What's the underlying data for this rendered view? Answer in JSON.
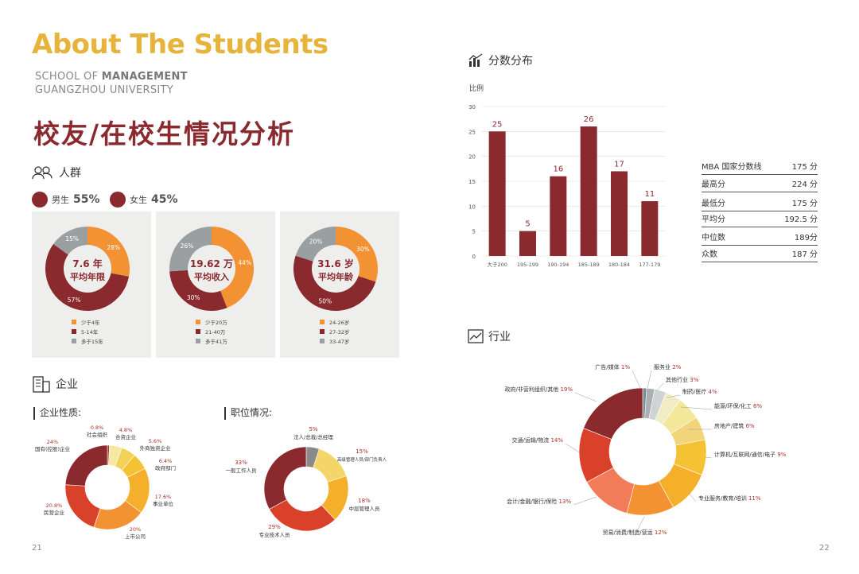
{
  "header": {
    "title": "About The Students",
    "school_line1_a": "SCHOOL OF ",
    "school_line1_b": "MANAGEMENT",
    "school_line2": "GUANGZHOU UNIVERSITY",
    "cn_title": "校友/在校生情况分析"
  },
  "crowd": {
    "title": "人群",
    "male_label": "男生",
    "male_value": "55%",
    "female_label": "女生",
    "female_value": "45%"
  },
  "colors": {
    "orange": "#f39233",
    "red": "#8b2a2e",
    "gray": "#9aa0a2",
    "accent": "#e6b43a"
  },
  "donuts": [
    {
      "center_value": "7.6 年",
      "center_label": "平均年限",
      "values": [
        28,
        57,
        15
      ],
      "labels": [
        "28%",
        "57%",
        "15%"
      ],
      "legend": [
        "少于4年",
        "5-14年",
        "多于15年"
      ]
    },
    {
      "center_value": "19.62 万",
      "center_label": "平均收入",
      "values": [
        44,
        30,
        26
      ],
      "labels": [
        "44%",
        "30%",
        "26%"
      ],
      "legend": [
        "少于20万",
        "21-40万",
        "多于41万"
      ]
    },
    {
      "center_value": "31.6 岁",
      "center_label": "平均年龄",
      "values": [
        30,
        50,
        20
      ],
      "labels": [
        "30%",
        "50%",
        "20%"
      ],
      "legend": [
        "24-26岁",
        "27-32岁",
        "33-47岁"
      ]
    }
  ],
  "enterprise": {
    "title": "企业",
    "nature_title": "企业性质:",
    "position_title": "职位情况:"
  },
  "chart_data": [
    {
      "type": "bar",
      "title": "分数分布",
      "ylabel": "比例",
      "categories": [
        "大于200",
        "195-199",
        "190-194",
        "185-189",
        "180-184",
        "177-179"
      ],
      "values": [
        25,
        5,
        16,
        26,
        17,
        11
      ],
      "ylim": [
        0,
        30
      ],
      "yticks": [
        0,
        5,
        10,
        15,
        20,
        25,
        30
      ]
    },
    {
      "type": "pie",
      "title": "企业性质:",
      "slices": [
        {
          "name": "社会组织",
          "value": 0.8,
          "pct": "0.8%",
          "color": "#a93226"
        },
        {
          "name": "合资企业",
          "value": 4.8,
          "pct": "4.8%",
          "color": "#f6e7a1"
        },
        {
          "name": "外商独资企业",
          "value": 5.6,
          "pct": "5.6%",
          "color": "#f3d25a"
        },
        {
          "name": "政府部门",
          "value": 6.4,
          "pct": "6.4%",
          "color": "#f5c233"
        },
        {
          "name": "事业单位",
          "value": 17.6,
          "pct": "17.6%",
          "color": "#f5b02b"
        },
        {
          "name": "上市公司",
          "value": 20,
          "pct": "20%",
          "color": "#f39233"
        },
        {
          "name": "民营企业",
          "value": 20.8,
          "pct": "20.8%",
          "color": "#d9412a"
        },
        {
          "name": "国有(控股)企业",
          "value": 24,
          "pct": "24%",
          "color": "#8b2a2e"
        }
      ]
    },
    {
      "type": "pie",
      "title": "职位情况:",
      "slices": [
        {
          "name": "法人/总裁/总经理",
          "value": 5,
          "pct": "5%",
          "color": "#8a8a8a"
        },
        {
          "name": "高级管理人员/部门负责人",
          "value": 15,
          "pct": "15%",
          "color": "#f3d56a"
        },
        {
          "name": "中层管理人员",
          "value": 18,
          "pct": "18%",
          "color": "#f5b02b"
        },
        {
          "name": "专业技术人员",
          "value": 29,
          "pct": "29%",
          "color": "#d9412a"
        },
        {
          "name": "一般工作人员",
          "value": 33,
          "pct": "33%",
          "color": "#8b2a2e"
        }
      ]
    },
    {
      "type": "pie",
      "title": "行业",
      "slices": [
        {
          "name": "广告/媒体",
          "value": 1,
          "pct": "1%",
          "color": "#7f8c8d"
        },
        {
          "name": "服务业",
          "value": 2,
          "pct": "2%",
          "color": "#a9b0b3"
        },
        {
          "name": "其他行业",
          "value": 3,
          "pct": "3%",
          "color": "#cfd3d4"
        },
        {
          "name": "制药/医疗",
          "value": 4,
          "pct": "4%",
          "color": "#f2ecc4"
        },
        {
          "name": "能源/环保/化工",
          "value": 6,
          "pct": "6%",
          "color": "#f3e79a"
        },
        {
          "name": "房地产/建筑",
          "value": 6,
          "pct": "6%",
          "color": "#f2d47a"
        },
        {
          "name": "计算机/互联网/通信/电子",
          "value": 9,
          "pct": "9%",
          "color": "#f5c233"
        },
        {
          "name": "专业服务/教育/培训",
          "value": 11,
          "pct": "11%",
          "color": "#f5b02b"
        },
        {
          "name": "贸易/消费/制造/营运",
          "value": 12,
          "pct": "12%",
          "color": "#f39233"
        },
        {
          "name": "会计/金融/银行/保险",
          "value": 13,
          "pct": "13%",
          "color": "#f27b5a"
        },
        {
          "name": "交通/运输/物流",
          "value": 14,
          "pct": "14%",
          "color": "#d9412a"
        },
        {
          "name": "政府/非营利组织/其他",
          "value": 19,
          "pct": "19%",
          "color": "#8b2a2e"
        }
      ]
    }
  ],
  "score_section": {
    "title": "分数分布",
    "ylabel": "比例"
  },
  "industry_title": "行业",
  "stats": [
    {
      "label": "MBA 国家分数线",
      "value": "175 分"
    },
    {
      "label": "最高分",
      "value": "224 分"
    },
    {
      "label": "最低分",
      "value": "175 分"
    },
    {
      "label": "平均分",
      "value": "192.5 分"
    },
    {
      "label": "中位数",
      "value": "189分"
    },
    {
      "label": "众数",
      "value": "187 分"
    }
  ],
  "pages": {
    "left": "21",
    "right": "22"
  }
}
